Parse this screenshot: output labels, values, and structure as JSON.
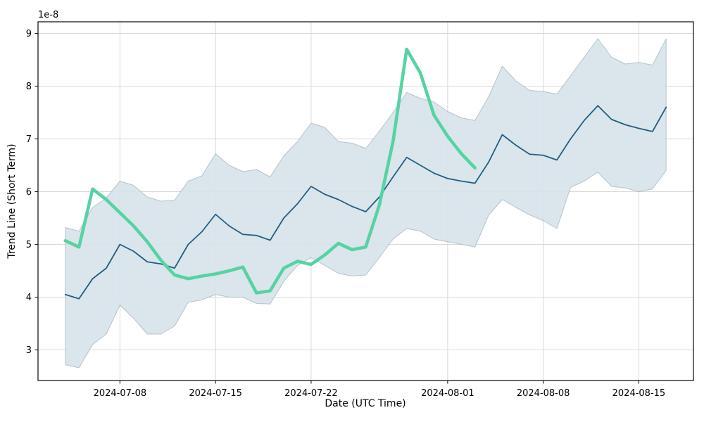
{
  "chart_data": {
    "type": "line",
    "title": "",
    "xlabel": "Date (UTC Time)",
    "ylabel": "Trend Line (Short Term)",
    "offset_label": "1e-8",
    "grid": true,
    "legend": "none",
    "background": "#ffffff",
    "grid_color": "#d9d9d9",
    "spine_color": "#1a1a1a",
    "xlim": [
      "2024-07-02",
      "2024-08-19"
    ],
    "ylim": [
      2.42,
      9.22
    ],
    "x_tick_labels": [
      "2024-07-08",
      "2024-07-15",
      "2024-07-22",
      "2024-08-01",
      "2024-08-08",
      "2024-08-15"
    ],
    "y_tick_labels": [
      3,
      4,
      5,
      6,
      7,
      8,
      9
    ],
    "dates": [
      "2024-07-04",
      "2024-07-05",
      "2024-07-06",
      "2024-07-07",
      "2024-07-08",
      "2024-07-09",
      "2024-07-10",
      "2024-07-11",
      "2024-07-12",
      "2024-07-13",
      "2024-07-14",
      "2024-07-15",
      "2024-07-16",
      "2024-07-17",
      "2024-07-18",
      "2024-07-19",
      "2024-07-20",
      "2024-07-21",
      "2024-07-22",
      "2024-07-23",
      "2024-07-24",
      "2024-07-25",
      "2024-07-26",
      "2024-07-27",
      "2024-07-28",
      "2024-07-29",
      "2024-07-30",
      "2024-07-31",
      "2024-08-01",
      "2024-08-02",
      "2024-08-03",
      "2024-08-04",
      "2024-08-05",
      "2024-08-06",
      "2024-08-07",
      "2024-08-08",
      "2024-08-09",
      "2024-08-10",
      "2024-08-11",
      "2024-08-12",
      "2024-08-13",
      "2024-08-14",
      "2024-08-15",
      "2024-08-16",
      "2024-08-17"
    ],
    "series": [
      {
        "name": "confidence-band",
        "type": "band",
        "fill_color": "#d7e2ea",
        "edge_color": "rgba(140,158,170,0.55)",
        "upper": [
          5.32,
          5.25,
          5.7,
          5.88,
          6.2,
          6.12,
          5.9,
          5.82,
          5.84,
          6.2,
          6.3,
          6.72,
          6.5,
          6.38,
          6.42,
          6.28,
          6.68,
          6.95,
          7.3,
          7.22,
          6.95,
          6.92,
          6.82,
          7.15,
          7.5,
          7.88,
          7.77,
          7.7,
          7.52,
          7.4,
          7.35,
          7.8,
          8.38,
          8.1,
          7.92,
          7.9,
          7.85,
          8.2,
          8.55,
          8.9,
          8.55,
          8.42,
          8.45,
          8.4,
          8.9
        ],
        "lower": [
          2.72,
          2.66,
          3.1,
          3.3,
          3.85,
          3.6,
          3.3,
          3.3,
          3.45,
          3.9,
          3.95,
          4.05,
          4.0,
          4.0,
          3.88,
          3.87,
          4.3,
          4.6,
          4.75,
          4.6,
          4.45,
          4.4,
          4.42,
          4.75,
          5.1,
          5.3,
          5.25,
          5.1,
          5.05,
          5.0,
          4.95,
          5.55,
          5.85,
          5.7,
          5.56,
          5.45,
          5.3,
          6.08,
          6.2,
          6.37,
          6.1,
          6.07,
          6.0,
          6.05,
          6.4
        ]
      },
      {
        "name": "forecast-trend-line",
        "type": "line",
        "color": "#1f5f82",
        "line_width": 1.8,
        "values": [
          4.05,
          3.97,
          4.35,
          4.55,
          5.0,
          4.87,
          4.67,
          4.63,
          4.55,
          5.0,
          5.24,
          5.57,
          5.35,
          5.19,
          5.17,
          5.08,
          5.5,
          5.77,
          6.1,
          5.95,
          5.85,
          5.72,
          5.62,
          5.9,
          6.28,
          6.65,
          6.5,
          6.35,
          6.25,
          6.2,
          6.16,
          6.56,
          7.08,
          6.88,
          6.71,
          6.69,
          6.6,
          7.0,
          7.35,
          7.63,
          7.37,
          7.27,
          7.2,
          7.14,
          7.6
        ]
      },
      {
        "name": "short-term-actual-line",
        "type": "line",
        "color": "#57d3a3",
        "line_width": 4.6,
        "dates": [
          "2024-07-04",
          "2024-07-05",
          "2024-07-06",
          "2024-07-07",
          "2024-07-08",
          "2024-07-09",
          "2024-07-10",
          "2024-07-11",
          "2024-07-12",
          "2024-07-13",
          "2024-07-14",
          "2024-07-15",
          "2024-07-16",
          "2024-07-17",
          "2024-07-18",
          "2024-07-19",
          "2024-07-20",
          "2024-07-21",
          "2024-07-22",
          "2024-07-23",
          "2024-07-24",
          "2024-07-25",
          "2024-07-26",
          "2024-07-27",
          "2024-07-28",
          "2024-07-29",
          "2024-07-30",
          "2024-07-31",
          "2024-08-01",
          "2024-08-02",
          "2024-08-03"
        ],
        "values": [
          5.07,
          4.95,
          6.05,
          5.85,
          5.6,
          5.35,
          5.05,
          4.7,
          4.42,
          4.35,
          4.4,
          4.44,
          4.5,
          4.57,
          4.08,
          4.12,
          4.55,
          4.68,
          4.62,
          4.8,
          5.02,
          4.9,
          4.95,
          5.75,
          6.95,
          8.7,
          8.25,
          7.45,
          7.05,
          6.72,
          6.45
        ]
      }
    ]
  }
}
